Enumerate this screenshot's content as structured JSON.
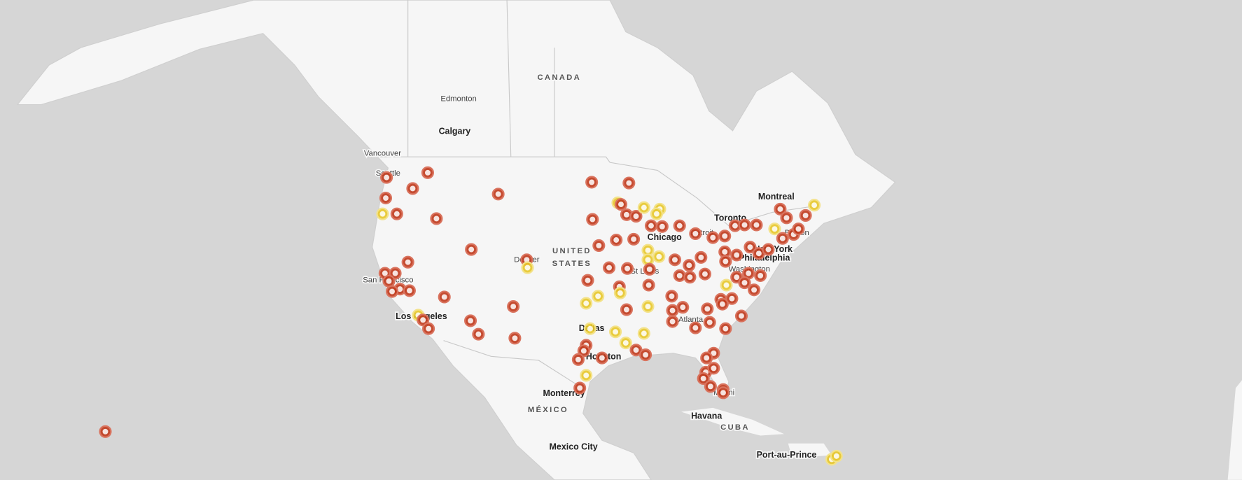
{
  "map": {
    "labels": [
      "CANADA",
      "Edmonton",
      "Calgary",
      "Vancouver",
      "Seattle",
      "UNITED",
      "STATES",
      "Denver",
      "San Francisco",
      "Los Angeles",
      "Chicago",
      "Detroit",
      "Toronto",
      "Montreal",
      "Boston",
      "New York",
      "Philadelphia",
      "Washington",
      "St Louis",
      "Dallas",
      "Houston",
      "Atlanta",
      "Miami",
      "Monterrey",
      "MÉXICO",
      "Havana",
      "CUBA",
      "Port-au-Prince",
      "Mexico City"
    ]
  }
}
